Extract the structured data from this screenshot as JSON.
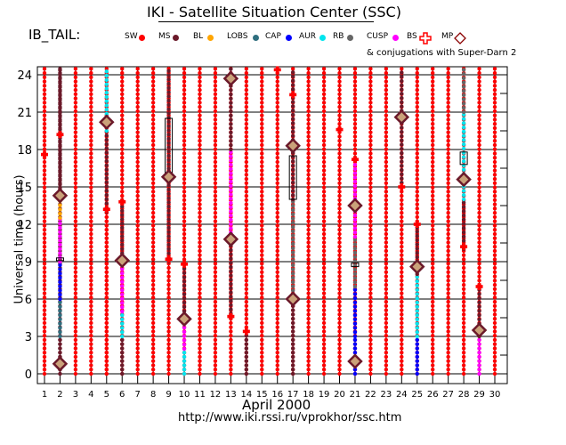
{
  "header": {
    "title": "IKI - Satellite Situation Center (SSC)",
    "satellite": "IB_TAIL:"
  },
  "legend": [
    {
      "label": "SW",
      "color": "#ff0000",
      "shape": "dot"
    },
    {
      "label": "MS",
      "color": "#6b1a2a",
      "shape": "dot"
    },
    {
      "label": "BL",
      "color": "#ffa500",
      "shape": "dot"
    },
    {
      "label": "LOBS",
      "color": "#2f6f7f",
      "shape": "dot"
    },
    {
      "label": "CAP",
      "color": "#0000ff",
      "shape": "dot"
    },
    {
      "label": "AUR",
      "color": "#00e5ee",
      "shape": "dot"
    },
    {
      "label": "RB",
      "color": "#666666",
      "shape": "dot"
    },
    {
      "label": "CUSP",
      "color": "#ff00ff",
      "shape": "dot"
    },
    {
      "label": "BS",
      "color": "#ff0000",
      "shape": "cross-icon"
    },
    {
      "label": "MP",
      "color": "#8b0000",
      "shape": "diamond-icon"
    }
  ],
  "conjugation_note": "& conjugations with Super-Darn 2",
  "footer": {
    "month_label": "April    2000",
    "url": "http://www.iki.rssi.ru/vprokhor/ssc.htm"
  },
  "chart_data": {
    "type": "scatter",
    "title": "IKI - Satellite Situation Center (SSC)",
    "xlabel": "April 2000",
    "ylabel": "Universal time (hours)",
    "x_ticks": [
      1,
      2,
      3,
      4,
      5,
      6,
      7,
      8,
      9,
      10,
      11,
      12,
      13,
      14,
      15,
      16,
      17,
      18,
      19,
      20,
      21,
      22,
      23,
      24,
      25,
      26,
      27,
      28,
      29,
      30
    ],
    "y_ticks": [
      0,
      3,
      6,
      9,
      12,
      15,
      18,
      21,
      24
    ],
    "ylim": [
      0,
      24.5
    ],
    "xlim": [
      1,
      30
    ],
    "day_segments": [
      {
        "day": 1,
        "segments": [
          [
            0,
            24.5,
            "SW"
          ]
        ]
      },
      {
        "day": 2,
        "segments": [
          [
            0,
            24.5,
            "MS"
          ]
        ]
      },
      {
        "day": 3,
        "segments": [
          [
            0,
            24.5,
            "SW"
          ]
        ]
      },
      {
        "day": 4,
        "segments": [
          [
            0,
            24.5,
            "SW"
          ]
        ]
      },
      {
        "day": 5,
        "segments": [
          [
            0,
            24.5,
            "SW"
          ]
        ]
      },
      {
        "day": 6,
        "segments": [
          [
            0,
            24.5,
            "SW"
          ]
        ]
      },
      {
        "day": 7,
        "segments": [
          [
            0,
            24.5,
            "SW"
          ]
        ]
      },
      {
        "day": 8,
        "segments": [
          [
            0,
            24.5,
            "SW"
          ]
        ]
      },
      {
        "day": 9,
        "segments": [
          [
            0,
            24.5,
            "SW"
          ]
        ]
      },
      {
        "day": 10,
        "segments": [
          [
            0,
            24.5,
            "SW"
          ]
        ]
      },
      {
        "day": 11,
        "segments": [
          [
            0,
            24.5,
            "SW"
          ]
        ]
      },
      {
        "day": 12,
        "segments": [
          [
            0,
            24.5,
            "SW"
          ]
        ]
      },
      {
        "day": 13,
        "segments": [
          [
            0,
            24.5,
            "SW"
          ]
        ]
      },
      {
        "day": 14,
        "segments": [
          [
            0,
            24.5,
            "SW"
          ]
        ]
      },
      {
        "day": 15,
        "segments": [
          [
            0,
            24.5,
            "SW"
          ]
        ]
      },
      {
        "day": 16,
        "segments": [
          [
            0,
            24.5,
            "SW"
          ]
        ]
      },
      {
        "day": 17,
        "segments": [
          [
            0,
            24.5,
            "SW"
          ]
        ]
      },
      {
        "day": 18,
        "segments": [
          [
            0,
            24.5,
            "SW"
          ]
        ]
      },
      {
        "day": 19,
        "segments": [
          [
            0,
            24.5,
            "SW"
          ]
        ]
      },
      {
        "day": 20,
        "segments": [
          [
            0,
            24.5,
            "SW"
          ]
        ]
      },
      {
        "day": 21,
        "segments": [
          [
            0,
            24.5,
            "SW"
          ]
        ]
      },
      {
        "day": 22,
        "segments": [
          [
            0,
            24.5,
            "SW"
          ]
        ]
      },
      {
        "day": 23,
        "segments": [
          [
            0,
            24.5,
            "SW"
          ]
        ]
      },
      {
        "day": 24,
        "segments": [
          [
            0,
            24.5,
            "SW"
          ]
        ]
      },
      {
        "day": 25,
        "segments": [
          [
            0,
            24.5,
            "SW"
          ]
        ]
      },
      {
        "day": 26,
        "segments": [
          [
            0,
            24.5,
            "SW"
          ]
        ]
      },
      {
        "day": 27,
        "segments": [
          [
            0,
            24.5,
            "SW"
          ]
        ]
      },
      {
        "day": 28,
        "segments": [
          [
            0,
            24.5,
            "SW"
          ]
        ]
      },
      {
        "day": 29,
        "segments": [
          [
            0,
            24.5,
            "SW"
          ]
        ]
      },
      {
        "day": 30,
        "segments": [
          [
            0,
            24.5,
            "SW"
          ]
        ]
      }
    ],
    "magnetosphere_passes": [
      {
        "day": 2,
        "segments": [
          [
            0,
            3,
            "MS"
          ],
          [
            3,
            6,
            "LOBS"
          ],
          [
            6,
            9,
            "CAP"
          ],
          [
            9,
            12.5,
            "CUSP"
          ],
          [
            12.5,
            14.5,
            "BL"
          ],
          [
            14.5,
            24.5,
            "MS"
          ]
        ]
      },
      {
        "day": 5,
        "segments": [
          [
            0,
            13,
            "SW"
          ],
          [
            13,
            19.5,
            "MS"
          ],
          [
            19.5,
            24.5,
            "AUR"
          ]
        ]
      },
      {
        "day": 6,
        "segments": [
          [
            0,
            3,
            "MS"
          ],
          [
            3,
            5,
            "AUR"
          ],
          [
            5,
            9,
            "CUSP"
          ],
          [
            9,
            13.5,
            "MS"
          ]
        ]
      },
      {
        "day": 9,
        "segments": [
          [
            9,
            24.5,
            "MS"
          ]
        ]
      },
      {
        "day": 10,
        "segments": [
          [
            0,
            2,
            "AUR"
          ],
          [
            2,
            4,
            "CUSP"
          ],
          [
            4,
            9,
            "MS"
          ]
        ]
      },
      {
        "day": 13,
        "segments": [
          [
            4.5,
            11,
            "MS"
          ],
          [
            11,
            18,
            "CUSP"
          ],
          [
            18,
            24.5,
            "MS"
          ]
        ]
      },
      {
        "day": 14,
        "segments": [
          [
            0,
            3.5,
            "MS"
          ]
        ]
      },
      {
        "day": 17,
        "segments": [
          [
            0,
            6,
            "MS"
          ],
          [
            6,
            14,
            "RB"
          ],
          [
            14,
            24.5,
            "MS"
          ]
        ]
      },
      {
        "day": 21,
        "segments": [
          [
            0,
            3,
            "CAP"
          ],
          [
            3,
            7,
            "CAP"
          ],
          [
            7,
            11,
            "RB"
          ],
          [
            11,
            17,
            "CUSP"
          ]
        ]
      },
      {
        "day": 24,
        "segments": [
          [
            15,
            24.5,
            "MS"
          ]
        ]
      },
      {
        "day": 25,
        "segments": [
          [
            0,
            3,
            "CAP"
          ],
          [
            3,
            8,
            "AUR"
          ],
          [
            8,
            12,
            "MS"
          ]
        ]
      },
      {
        "day": 28,
        "segments": [
          [
            10,
            14,
            "MS"
          ],
          [
            14,
            21,
            "AUR"
          ],
          [
            21,
            24.5,
            "RB"
          ]
        ]
      },
      {
        "day": 29,
        "segments": [
          [
            0,
            3,
            "CUSP"
          ],
          [
            3,
            7,
            "MS"
          ]
        ]
      }
    ],
    "bow_shock_crossings": [
      {
        "day": 1,
        "ut": 17.6
      },
      {
        "day": 2,
        "ut": 19.2
      },
      {
        "day": 5,
        "ut": 13.2
      },
      {
        "day": 6,
        "ut": 13.8
      },
      {
        "day": 9,
        "ut": 9.2
      },
      {
        "day": 10,
        "ut": 8.8
      },
      {
        "day": 13,
        "ut": 4.6
      },
      {
        "day": 14,
        "ut": 3.4
      },
      {
        "day": 16,
        "ut": 24.4
      },
      {
        "day": 17,
        "ut": 22.4
      },
      {
        "day": 20,
        "ut": 19.6
      },
      {
        "day": 21,
        "ut": 17.2
      },
      {
        "day": 24,
        "ut": 15
      },
      {
        "day": 25,
        "ut": 12
      },
      {
        "day": 28,
        "ut": 10.2
      },
      {
        "day": 29,
        "ut": 7
      }
    ],
    "magnetopause_crossings": [
      {
        "day": 2,
        "ut": 0.8
      },
      {
        "day": 2,
        "ut": 14.3
      },
      {
        "day": 5,
        "ut": 20.2
      },
      {
        "day": 6,
        "ut": 9.1
      },
      {
        "day": 9,
        "ut": 15.8
      },
      {
        "day": 10,
        "ut": 4.4
      },
      {
        "day": 13,
        "ut": 10.8
      },
      {
        "day": 13,
        "ut": 23.7
      },
      {
        "day": 17,
        "ut": 6
      },
      {
        "day": 17,
        "ut": 18.3
      },
      {
        "day": 21,
        "ut": 1
      },
      {
        "day": 21,
        "ut": 13.5
      },
      {
        "day": 24,
        "ut": 20.6
      },
      {
        "day": 25,
        "ut": 8.6
      },
      {
        "day": 28,
        "ut": 15.6
      },
      {
        "day": 29,
        "ut": 3.5
      }
    ],
    "conjugation_boxes": [
      {
        "day": 9,
        "ut_start": 16,
        "ut_end": 20.5
      },
      {
        "day": 17,
        "ut_start": 14,
        "ut_end": 17.5
      },
      {
        "day": 2,
        "ut_start": 9.1,
        "ut_end": 9.3
      },
      {
        "day": 21,
        "ut_start": 8.6,
        "ut_end": 8.9
      },
      {
        "day": 28,
        "ut_start": 16.8,
        "ut_end": 17.8
      }
    ]
  }
}
